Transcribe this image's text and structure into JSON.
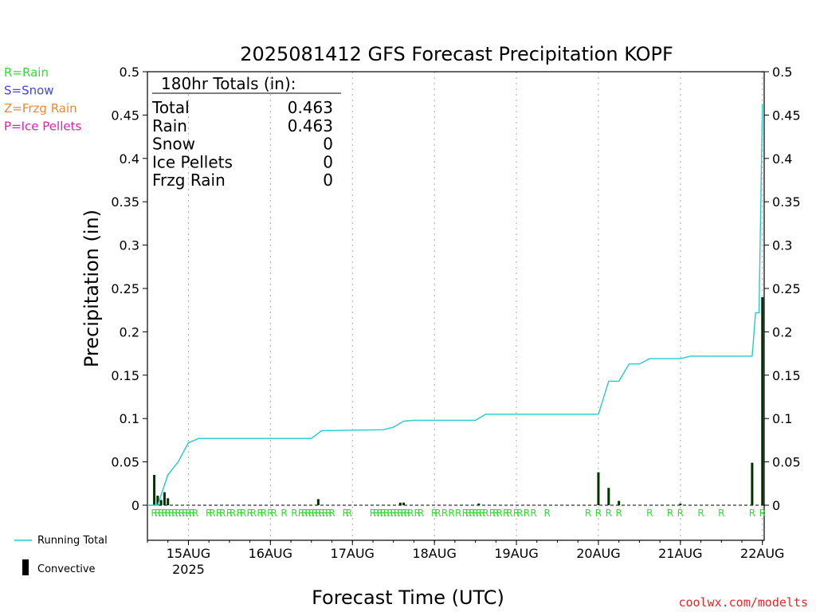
{
  "chart_data": {
    "type": "bar",
    "title": "2025081412 GFS Forecast Precipitation KOPF",
    "xlabel": "Forecast Time (UTC)",
    "ylabel": "Precipitation (in)",
    "ylim": [
      0,
      0.5
    ],
    "xlim": [
      "2025-08-14 12Z",
      "2025-08-22 00Z"
    ],
    "y_ticks": [
      "0",
      "0.05",
      "0.1",
      "0.15",
      "0.2",
      "0.25",
      "0.3",
      "0.35",
      "0.4",
      "0.45",
      "0.5"
    ],
    "y_tick_values": [
      0,
      0.05,
      0.1,
      0.15,
      0.2,
      0.25,
      0.3,
      0.35,
      0.4,
      0.45,
      0.5
    ],
    "x_ticks": [
      {
        "label": "15AUG",
        "sub": "2025",
        "day": 15
      },
      {
        "label": "16AUG",
        "sub": "",
        "day": 16
      },
      {
        "label": "17AUG",
        "sub": "",
        "day": 17
      },
      {
        "label": "18AUG",
        "sub": "",
        "day": 18
      },
      {
        "label": "19AUG",
        "sub": "",
        "day": 19
      },
      {
        "label": "20AUG",
        "sub": "",
        "day": 20
      },
      {
        "label": "21AUG",
        "sub": "",
        "day": 21
      },
      {
        "label": "22AUG",
        "sub": "",
        "day": 22
      }
    ],
    "grid": "vertical-dotted",
    "ptype_legend": [
      {
        "text": "R=Rain",
        "color": "#33dd33"
      },
      {
        "text": "S=Snow",
        "color": "#4444ee"
      },
      {
        "text": "Z=Frzg Rain",
        "color": "#ee8833"
      },
      {
        "text": "P=Ice Pellets",
        "color": "#dd22aa"
      }
    ],
    "totals_header": "180hr Totals (in):",
    "totals": [
      {
        "label": "Total",
        "value": "0.463"
      },
      {
        "label": "Rain",
        "value": "0.463"
      },
      {
        "label": "Snow",
        "value": "0"
      },
      {
        "label": "Ice Pellets",
        "value": "0"
      },
      {
        "label": "Frzg Rain",
        "value": "0"
      }
    ],
    "series": [
      {
        "name": "Running Total",
        "color": "#22cccc",
        "points": [
          [
            "08-14 12Z",
            0
          ],
          [
            "08-14 15Z",
            0.0
          ],
          [
            "08-14 18Z",
            0.035
          ],
          [
            "08-14 21Z",
            0.05
          ],
          [
            "08-15 00Z",
            0.072
          ],
          [
            "08-15 03Z",
            0.077
          ],
          [
            "08-16 06Z",
            0.077
          ],
          [
            "08-16 12Z",
            0.077
          ],
          [
            "08-16 15Z",
            0.086
          ],
          [
            "08-17 09Z",
            0.087
          ],
          [
            "08-17 12Z",
            0.09
          ],
          [
            "08-17 15Z",
            0.097
          ],
          [
            "08-17 18Z",
            0.098
          ],
          [
            "08-18 12Z",
            0.098
          ],
          [
            "08-18 15Z",
            0.105
          ],
          [
            "08-20 00Z",
            0.105
          ],
          [
            "08-20 03Z",
            0.143
          ],
          [
            "08-20 06Z",
            0.143
          ],
          [
            "08-20 09Z",
            0.163
          ],
          [
            "08-20 12Z",
            0.163
          ],
          [
            "08-20 15Z",
            0.169
          ],
          [
            "08-21 00Z",
            0.169
          ],
          [
            "08-21 03Z",
            0.172
          ],
          [
            "08-21 21Z",
            0.172
          ],
          [
            "08-21 22Z",
            0.222
          ],
          [
            "08-21 23Z",
            0.222
          ],
          [
            "08-22 00Z",
            0.463
          ]
        ]
      },
      {
        "name": "Convective",
        "color": "#000000",
        "bars": [
          [
            "08-14 14Z",
            0.035
          ],
          [
            "08-14 15Z",
            0.011
          ],
          [
            "08-14 16Z",
            0.006
          ],
          [
            "08-14 17Z",
            0.015
          ],
          [
            "08-14 18Z",
            0.008
          ],
          [
            "08-16 14Z",
            0.007
          ],
          [
            "08-17 14Z",
            0.003
          ],
          [
            "08-17 15Z",
            0.003
          ],
          [
            "08-18 13Z",
            0.002
          ],
          [
            "08-20 00Z",
            0.038
          ],
          [
            "08-20 03Z",
            0.02
          ],
          [
            "08-20 06Z",
            0.005
          ],
          [
            "08-21 00Z",
            0.002
          ],
          [
            "08-21 21Z",
            0.049
          ],
          [
            "08-22 00Z",
            0.24
          ]
        ]
      }
    ],
    "ptype_marks": {
      "text": "R",
      "color": "#33dd33",
      "times": [
        "08-14 14Z",
        "08-14 15Z",
        "08-14 16Z",
        "08-14 17Z",
        "08-14 18Z",
        "08-14 19Z",
        "08-14 20Z",
        "08-14 21Z",
        "08-14 22Z",
        "08-14 23Z",
        "08-15 00Z",
        "08-15 01Z",
        "08-15 02Z",
        "08-15 06Z",
        "08-15 07Z",
        "08-15 09Z",
        "08-15 10Z",
        "08-15 12Z",
        "08-15 13Z",
        "08-15 15Z",
        "08-15 16Z",
        "08-15 18Z",
        "08-15 19Z",
        "08-15 21Z",
        "08-15 22Z",
        "08-16 00Z",
        "08-16 01Z",
        "08-16 04Z",
        "08-16 07Z",
        "08-16 09Z",
        "08-16 10Z",
        "08-16 11Z",
        "08-16 12Z",
        "08-16 13Z",
        "08-16 14Z",
        "08-16 15Z",
        "08-16 16Z",
        "08-16 17Z",
        "08-16 18Z",
        "08-16 22Z",
        "08-16 23Z",
        "08-17 06Z",
        "08-17 07Z",
        "08-17 08Z",
        "08-17 09Z",
        "08-17 10Z",
        "08-17 11Z",
        "08-17 12Z",
        "08-17 13Z",
        "08-17 14Z",
        "08-17 15Z",
        "08-17 16Z",
        "08-17 17Z",
        "08-17 19Z",
        "08-17 20Z",
        "08-18 00Z",
        "08-18 01Z",
        "08-18 03Z",
        "08-18 05Z",
        "08-18 07Z",
        "08-18 09Z",
        "08-18 10Z",
        "08-18 11Z",
        "08-18 12Z",
        "08-18 13Z",
        "08-18 14Z",
        "08-18 15Z",
        "08-18 17Z",
        "08-18 18Z",
        "08-18 19Z",
        "08-18 21Z",
        "08-18 22Z",
        "08-19 00Z",
        "08-19 01Z",
        "08-19 03Z",
        "08-19 05Z",
        "08-19 09Z",
        "08-20 15Z",
        "08-19 21Z",
        "08-20 00Z",
        "08-20 03Z",
        "08-20 06Z",
        "08-20 21Z",
        "08-21 00Z",
        "08-21 06Z",
        "08-21 12Z",
        "08-21 21Z",
        "08-22 00Z"
      ]
    },
    "legend": {
      "running_total_label": "Running Total",
      "convective_label": "Convective"
    },
    "credit": "coolwx.com/modelts",
    "credit_color": "#ee2222"
  }
}
